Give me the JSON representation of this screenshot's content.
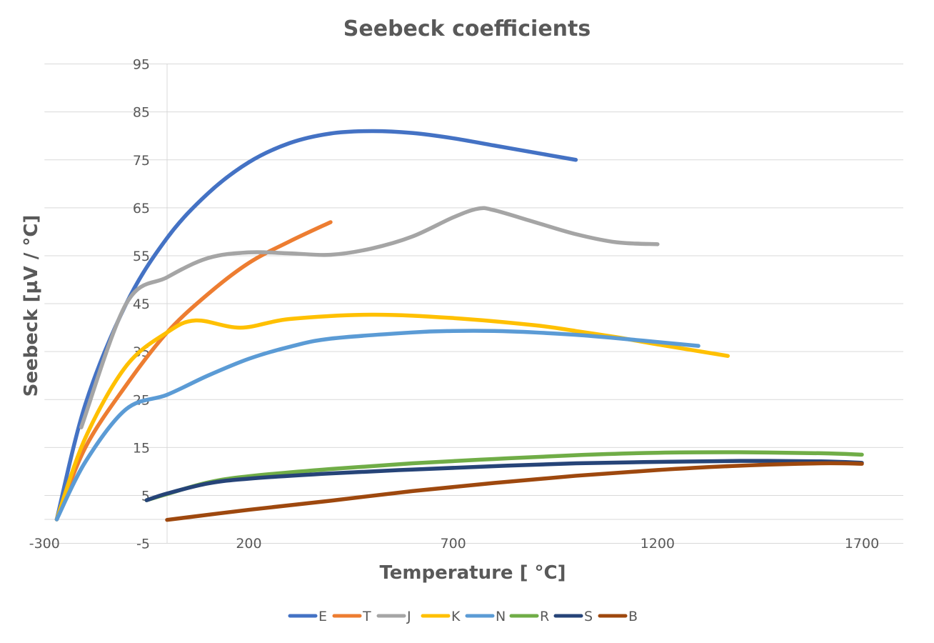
{
  "chart_data": {
    "type": "line",
    "title": "Seebeck coefficients",
    "xlabel": "Temperature [ °C]",
    "ylabel": "Seebeck [µV / °C]",
    "xlim": [
      -300,
      1800
    ],
    "ylim": [
      -5,
      95
    ],
    "x_ticks": [
      -300,
      200,
      700,
      1200,
      1700
    ],
    "y_ticks": [
      95,
      85,
      75,
      65,
      55,
      45,
      35,
      25,
      15,
      5,
      -5
    ],
    "grid": true,
    "legend_position": "bottom",
    "series": [
      {
        "name": "E",
        "color": "#4472C4",
        "x": [
          -270,
          -200,
          -100,
          0,
          100,
          200,
          300,
          400,
          500,
          600,
          700,
          800,
          900,
          1000
        ],
        "y": [
          0,
          24,
          45,
          58.7,
          68,
          74.5,
          78.5,
          80.5,
          81,
          80.6,
          79.5,
          78,
          76.5,
          75
        ]
      },
      {
        "name": "T",
        "color": "#ED7D31",
        "x": [
          -270,
          -200,
          -100,
          0,
          100,
          200,
          300,
          400
        ],
        "y": [
          0,
          15,
          28,
          39,
          47,
          53.5,
          58,
          62
        ]
      },
      {
        "name": "J",
        "color": "#A5A5A5",
        "x": [
          -210,
          -100,
          0,
          100,
          200,
          300,
          400,
          500,
          600,
          700,
          760,
          800,
          900,
          1000,
          1100,
          1200
        ],
        "y": [
          19.2,
          45,
          50.5,
          54.5,
          55.7,
          55.5,
          55.2,
          56.5,
          59,
          63,
          64.8,
          64.5,
          62,
          59.5,
          57.8,
          57.4
        ]
      },
      {
        "name": "K",
        "color": "#FFC000",
        "x": [
          -270,
          -200,
          -100,
          0,
          70,
          180,
          300,
          500,
          700,
          900,
          1000,
          1100,
          1200,
          1372
        ],
        "y": [
          0,
          17,
          32,
          39,
          41.5,
          40,
          41.8,
          42.7,
          42,
          40.5,
          39.3,
          38,
          36.5,
          34.1
        ]
      },
      {
        "name": "N",
        "color": "#5B9BD5",
        "x": [
          -270,
          -200,
          -100,
          0,
          100,
          200,
          300,
          400,
          600,
          700,
          800,
          900,
          1000,
          1100,
          1200,
          1300
        ],
        "y": [
          0,
          12,
          23,
          26,
          30,
          33.5,
          36,
          37.7,
          39,
          39.3,
          39.3,
          39,
          38.5,
          37.8,
          37,
          36.2
        ]
      },
      {
        "name": "R",
        "color": "#70AD47",
        "x": [
          -50,
          0,
          100,
          200,
          400,
          600,
          800,
          1000,
          1200,
          1400,
          1600,
          1700
        ],
        "y": [
          4,
          5.3,
          7.7,
          9,
          10.5,
          11.7,
          12.6,
          13.4,
          13.9,
          14,
          13.8,
          13.5
        ]
      },
      {
        "name": "S",
        "color": "#264478",
        "x": [
          -50,
          0,
          100,
          200,
          400,
          600,
          800,
          1000,
          1200,
          1400,
          1600,
          1700
        ],
        "y": [
          4,
          5.4,
          7.5,
          8.5,
          9.6,
          10.4,
          11.1,
          11.7,
          12,
          12.2,
          12.1,
          11.8
        ]
      },
      {
        "name": "B",
        "color": "#9E480E",
        "x": [
          0,
          200,
          400,
          600,
          800,
          1000,
          1200,
          1400,
          1600,
          1700
        ],
        "y": [
          -0.1,
          2,
          3.9,
          5.9,
          7.6,
          9.1,
          10.3,
          11.2,
          11.7,
          11.6
        ]
      }
    ]
  }
}
